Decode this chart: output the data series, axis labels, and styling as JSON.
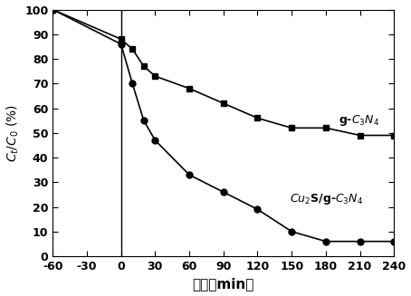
{
  "gcn_x": [
    -60,
    0,
    10,
    20,
    30,
    60,
    90,
    120,
    150,
    180,
    210,
    240
  ],
  "gcn_y": [
    100,
    88,
    84,
    77,
    73,
    68,
    62,
    56,
    52,
    52,
    49,
    49
  ],
  "cu2s_x": [
    -60,
    0,
    10,
    20,
    30,
    60,
    90,
    120,
    150,
    180,
    210,
    240
  ],
  "cu2s_y": [
    100,
    86,
    70,
    55,
    47,
    33,
    26,
    19,
    10,
    6,
    6,
    6
  ],
  "gcn_ann_x": 191,
  "gcn_ann_y": 54,
  "cu2s_ann_x": 148,
  "cu2s_ann_y": 22,
  "xlabel": "时间（min）",
  "ylabel": "$\\it{C_t}$/$\\it{C_0}$ (%)",
  "xlim": [
    -60,
    240
  ],
  "ylim": [
    0,
    100
  ],
  "xticks": [
    -60,
    -30,
    0,
    30,
    60,
    90,
    120,
    150,
    180,
    210,
    240
  ],
  "yticks": [
    0,
    10,
    20,
    30,
    40,
    50,
    60,
    70,
    80,
    90,
    100
  ],
  "vline_x": 0,
  "color": "#000000",
  "figsize": [
    4.54,
    3.27
  ],
  "dpi": 100
}
